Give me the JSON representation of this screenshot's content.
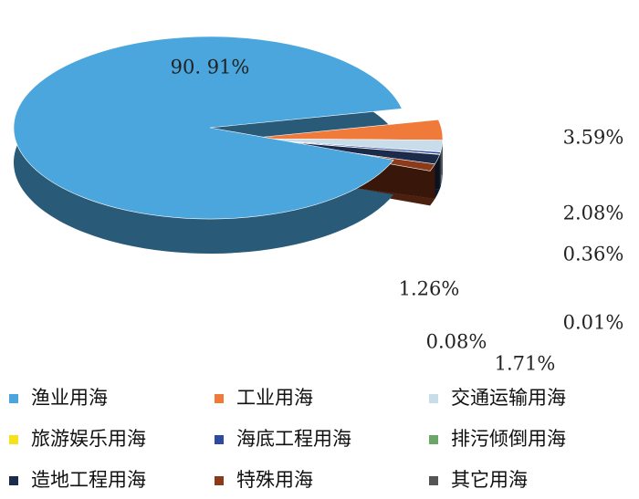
{
  "chart_data": {
    "type": "pie",
    "categories": [
      "渔业用海",
      "工业用海",
      "交通运输用海",
      "旅游娱乐用海",
      "海底工程用海",
      "排污倾倒用海",
      "造地工程用海",
      "特殊用海",
      "其它用海"
    ],
    "values": [
      90.91,
      3.59,
      2.08,
      0.01,
      0.36,
      0.08,
      1.71,
      1.26,
      null
    ],
    "value_labels": [
      "90. 91%",
      "3.59%",
      "2.08%",
      "0.01%",
      "0.36%",
      "0.08%",
      "1.71%",
      "1.26%",
      null
    ],
    "colors": [
      "#4aa6dc",
      "#f07a3a",
      "#c8dcea",
      "#f5e21a",
      "#2e4a9e",
      "#6aa86a",
      "#1c2b4a",
      "#8b3a1a",
      "#555555"
    ],
    "legend": "bottom"
  }
}
